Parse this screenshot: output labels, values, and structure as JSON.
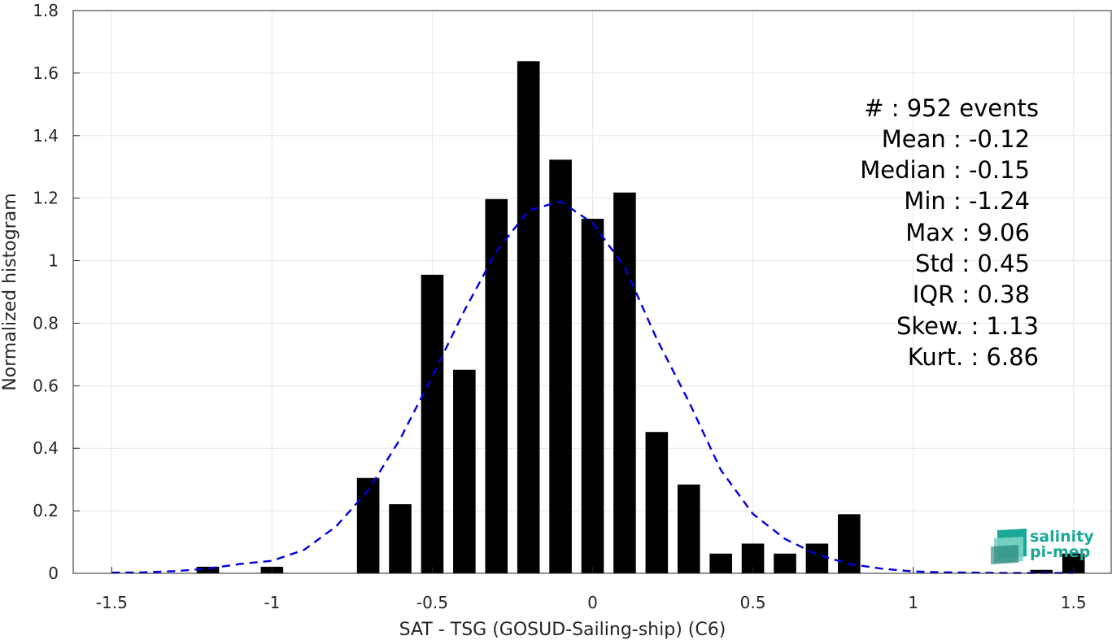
{
  "chart_data": {
    "type": "bar",
    "xlabel": "SAT - TSG (GOSUD-Sailing-ship) (C6)",
    "ylabel": "Normalized histogram",
    "xlim": [
      -1.62,
      1.62
    ],
    "ylim": [
      0,
      1.8
    ],
    "xticks": [
      -1.5,
      -1,
      -0.5,
      0,
      0.5,
      1,
      1.5
    ],
    "xtick_labels": [
      "-1.5",
      "-1",
      "-0.5",
      "0",
      "0.5",
      "1",
      "1.5"
    ],
    "yticks": [
      0,
      0.2,
      0.4,
      0.6,
      0.8,
      1,
      1.2,
      1.4,
      1.6,
      1.8
    ],
    "ytick_labels": [
      "0",
      "0.2",
      "0.4",
      "0.6",
      "0.8",
      "1",
      "1.2",
      "1.4",
      "1.6",
      "1.8"
    ],
    "grid": true,
    "bar_width": 0.07,
    "bar_color": "#000000",
    "bins": [
      {
        "x": -1.2,
        "y": 0.021
      },
      {
        "x": -1.0,
        "y": 0.021
      },
      {
        "x": -0.7,
        "y": 0.305
      },
      {
        "x": -0.6,
        "y": 0.221
      },
      {
        "x": -0.5,
        "y": 0.955
      },
      {
        "x": -0.4,
        "y": 0.651
      },
      {
        "x": -0.3,
        "y": 1.197
      },
      {
        "x": -0.2,
        "y": 1.638
      },
      {
        "x": -0.1,
        "y": 1.323
      },
      {
        "x": 0.0,
        "y": 1.134
      },
      {
        "x": 0.1,
        "y": 1.218
      },
      {
        "x": 0.2,
        "y": 0.452
      },
      {
        "x": 0.3,
        "y": 0.284
      },
      {
        "x": 0.4,
        "y": 0.063
      },
      {
        "x": 0.5,
        "y": 0.095
      },
      {
        "x": 0.6,
        "y": 0.063
      },
      {
        "x": 0.7,
        "y": 0.095
      },
      {
        "x": 0.8,
        "y": 0.189
      },
      {
        "x": 1.4,
        "y": 0.011
      },
      {
        "x": 1.5,
        "y": 0.063
      }
    ],
    "fit": {
      "type": "gaussian",
      "style": "dashed",
      "color": "#0000dd",
      "x": [
        -1.5,
        -1.4,
        -1.3,
        -1.2,
        -1.1,
        -1.0,
        -0.9,
        -0.8,
        -0.7,
        -0.6,
        -0.5,
        -0.4,
        -0.3,
        -0.2,
        -0.1,
        0.0,
        0.1,
        0.2,
        0.3,
        0.4,
        0.5,
        0.6,
        0.7,
        0.8,
        0.9,
        1.0,
        1.1,
        1.2,
        1.3,
        1.4,
        1.5
      ],
      "y": [
        0.002,
        0.003,
        0.007,
        0.015,
        0.03,
        0.04,
        0.075,
        0.15,
        0.265,
        0.43,
        0.63,
        0.84,
        1.03,
        1.16,
        1.19,
        1.12,
        0.98,
        0.75,
        0.55,
        0.33,
        0.19,
        0.11,
        0.06,
        0.03,
        0.015,
        0.006,
        0.003,
        0.002,
        0.001,
        0.001,
        0.001
      ]
    }
  },
  "stats": [
    {
      "label": "#  : 952 events"
    },
    {
      "label": "Mean : -0.12"
    },
    {
      "label": "Median : -0.15"
    },
    {
      "label": "Min : -1.24"
    },
    {
      "label": "Max : 9.06"
    },
    {
      "label": "Std : 0.45"
    },
    {
      "label": "IQR : 0.38"
    },
    {
      "label": "Skew. : 1.13"
    },
    {
      "label": "Kurt. : 6.86"
    }
  ],
  "logo": {
    "line1": "salinity",
    "line2": "pi-mep",
    "colors": [
      "#1aa898",
      "#7dd4c4",
      "#0f6f66"
    ]
  }
}
